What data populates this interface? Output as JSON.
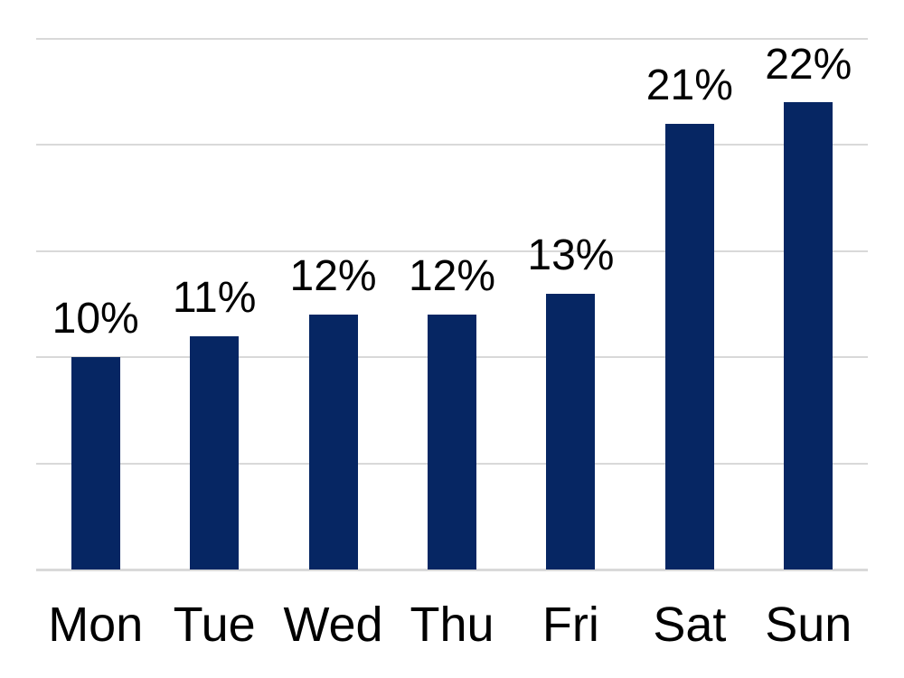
{
  "chart_data": {
    "type": "bar",
    "categories": [
      "Mon",
      "Tue",
      "Wed",
      "Thu",
      "Fri",
      "Sat",
      "Sun"
    ],
    "values": [
      10,
      11,
      12,
      12,
      13,
      21,
      22
    ],
    "data_labels": [
      "10%",
      "11%",
      "12%",
      "12%",
      "13%",
      "21%",
      "22%"
    ],
    "title": "",
    "xlabel": "",
    "ylabel": "",
    "ylim": [
      0,
      25
    ],
    "gridline_step": 5,
    "grid": true,
    "legend": false,
    "y_axis_tick_labels_visible": false,
    "bar_color": "#062663",
    "gridline_color": "#d9d9d9",
    "axis_line_color": "#d9d9d9",
    "text_color": "#000000",
    "background_color": "#ffffff"
  }
}
